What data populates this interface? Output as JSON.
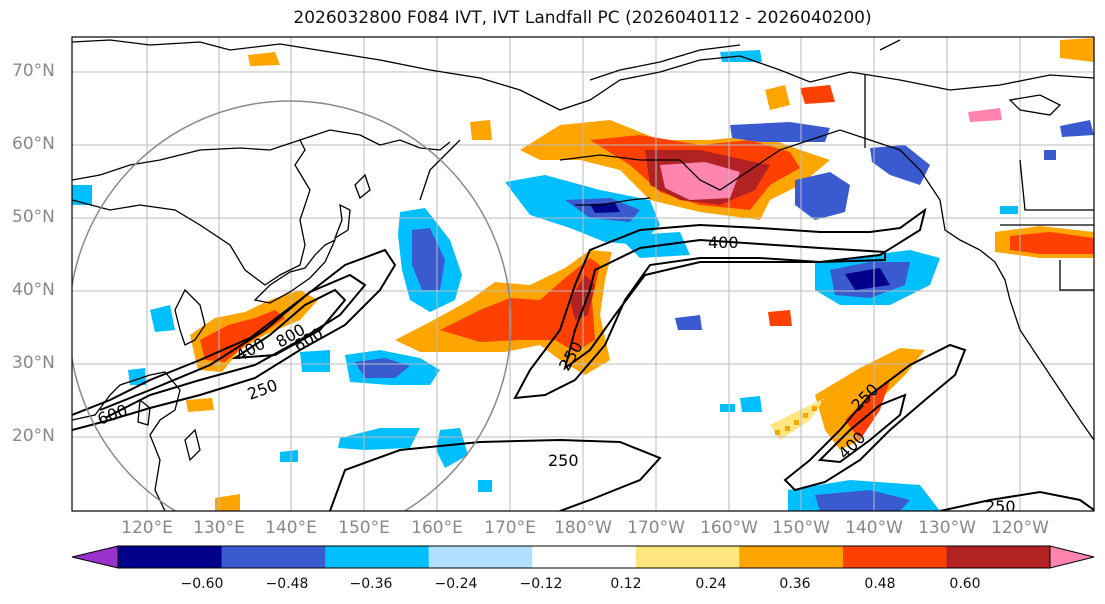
{
  "title": "2026032800 F084 IVT, IVT Landfall PC (2026040112 - 2026040200)",
  "lat_labels": [
    "70°N",
    "60°N",
    "50°N",
    "40°N",
    "30°N",
    "20°N"
  ],
  "lon_labels": [
    "120°E",
    "130°E",
    "140°E",
    "150°E",
    "160°E",
    "170°E",
    "180°W",
    "170°W",
    "160°W",
    "150°W",
    "140°W",
    "130°W",
    "120°W"
  ],
  "contour_labels": [
    "800",
    "600",
    "400",
    "250",
    "600",
    "400",
    "250",
    "250",
    "400",
    "250",
    "250"
  ],
  "colorbar": {
    "colors": [
      "#9932CC",
      "#00008B",
      "#3A5BD0",
      "#00BFFF",
      "#B0E0FF",
      "#FFFFFF",
      "#FFE680",
      "#FFA500",
      "#FF4000",
      "#B22222",
      "#FF85B0"
    ],
    "tick_labels": [
      "−0.60",
      "−0.48",
      "−0.36",
      "−0.24",
      "−0.12",
      "0.12",
      "0.24",
      "0.36",
      "0.48",
      "0.60"
    ]
  }
}
